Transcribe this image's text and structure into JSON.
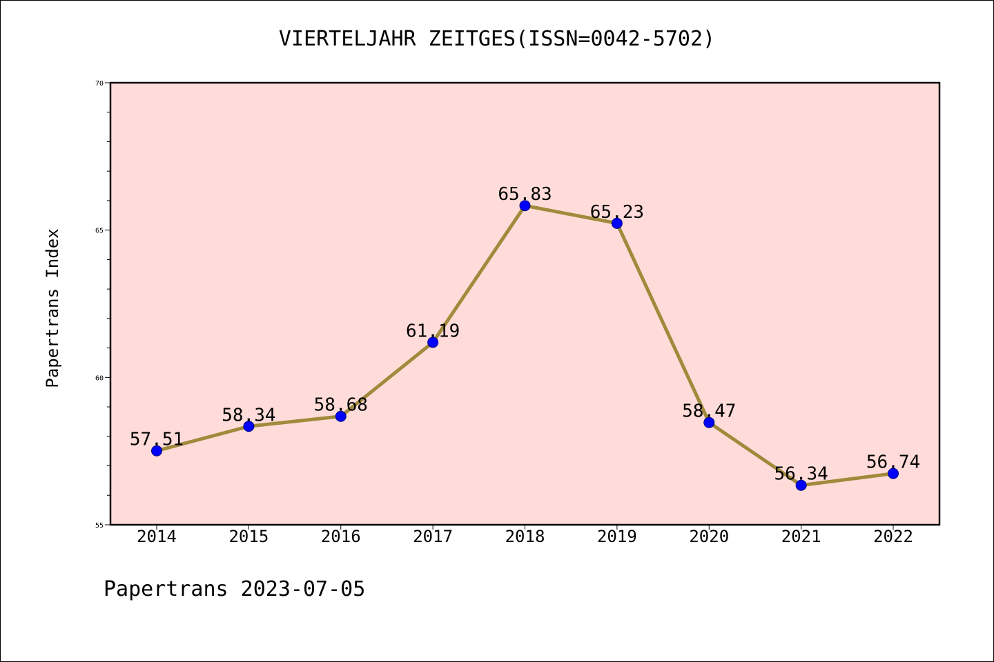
{
  "chart_data": {
    "type": "line",
    "title": "VIERTELJAHR ZEITGES(ISSN=0042-5702)",
    "ylabel": "Papertrans Index",
    "xlabel": "",
    "footer": "Papertrans 2023-07-05",
    "categories": [
      "2014",
      "2015",
      "2016",
      "2017",
      "2018",
      "2019",
      "2020",
      "2021",
      "2022"
    ],
    "values": [
      57.51,
      58.34,
      58.68,
      61.19,
      65.83,
      65.23,
      58.47,
      56.34,
      56.74
    ],
    "value_labels": [
      "57.51",
      "58.34",
      "58.68",
      "61.19",
      "65.83",
      "65.23",
      "58.47",
      "56.34",
      "56.74"
    ],
    "ylim": [
      55,
      70
    ],
    "y_major_ticks": [
      55,
      60,
      65,
      70
    ],
    "y_minor_step": 1,
    "grid": false,
    "colors": {
      "plot_background": "#ffdcd9",
      "line": "#a08a3c",
      "marker": "#0000ff"
    }
  }
}
